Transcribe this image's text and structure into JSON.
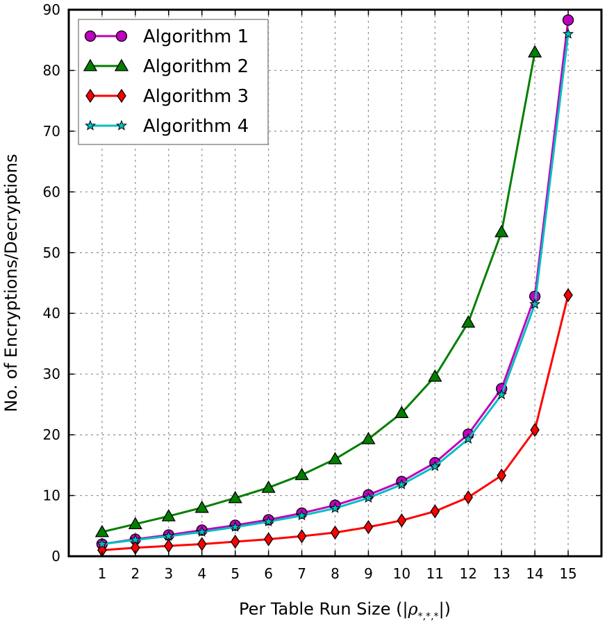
{
  "chart_data": {
    "type": "line",
    "title": "",
    "xlabel": "Per Table Run Size (|ρ*,*,*|)",
    "xlabel_main": "Per Table Run Size (|",
    "xlabel_symbol": "ρ",
    "xlabel_subscript": "*,*,*",
    "xlabel_close": "|)",
    "ylabel": "No. of Encryptions/Decryptions",
    "x": [
      1,
      2,
      3,
      4,
      5,
      6,
      7,
      8,
      9,
      10,
      11,
      12,
      13,
      14,
      15
    ],
    "xlim": [
      0,
      16
    ],
    "ylim": [
      0,
      90
    ],
    "xticks": [
      "1",
      "2",
      "3",
      "4",
      "5",
      "6",
      "7",
      "8",
      "9",
      "10",
      "11",
      "12",
      "13",
      "14",
      "15"
    ],
    "yticks": [
      "0",
      "10",
      "20",
      "30",
      "40",
      "50",
      "60",
      "70",
      "80",
      "90"
    ],
    "grid": true,
    "legend_position": "top-left",
    "series": [
      {
        "name": "Algorithm 1",
        "color": "#bf00bf",
        "marker": "circle",
        "marker_color": "#bf00bf",
        "x": [
          1,
          2,
          3,
          4,
          5,
          6,
          7,
          8,
          9,
          10,
          11,
          12,
          13,
          14,
          15
        ],
        "values": [
          2.0,
          2.8,
          3.5,
          4.3,
          5.1,
          6.0,
          7.1,
          8.4,
          10.1,
          12.3,
          15.4,
          20.1,
          27.6,
          42.8,
          88.3
        ]
      },
      {
        "name": "Algorithm 2",
        "color": "#007f00",
        "marker": "triangle",
        "marker_color": "#007f00",
        "x": [
          1,
          2,
          3,
          4,
          5,
          6,
          7,
          8,
          9,
          10,
          11,
          12,
          13,
          14
        ],
        "values": [
          4.0,
          5.3,
          6.6,
          8.0,
          9.6,
          11.3,
          13.4,
          16.0,
          19.3,
          23.6,
          29.6,
          38.5,
          53.4,
          83.0
        ]
      },
      {
        "name": "Algorithm 3",
        "color": "#ff0000",
        "marker": "diamond",
        "marker_color": "#ff0000",
        "x": [
          1,
          2,
          3,
          4,
          5,
          6,
          7,
          8,
          9,
          10,
          11,
          12,
          13,
          14,
          15
        ],
        "values": [
          1.0,
          1.4,
          1.7,
          2.0,
          2.4,
          2.8,
          3.3,
          3.9,
          4.8,
          5.9,
          7.4,
          9.7,
          13.3,
          20.8,
          43.0
        ]
      },
      {
        "name": "Algorithm 4",
        "color": "#00bfbf",
        "marker": "star",
        "marker_color": "#00bfbf",
        "x": [
          1,
          2,
          3,
          4,
          5,
          6,
          7,
          8,
          9,
          10,
          11,
          12,
          13,
          14,
          15
        ],
        "values": [
          2.0,
          2.7,
          3.3,
          4.0,
          4.8,
          5.7,
          6.7,
          7.9,
          9.6,
          11.8,
          14.8,
          19.3,
          26.6,
          41.5,
          86.0
        ]
      }
    ]
  }
}
